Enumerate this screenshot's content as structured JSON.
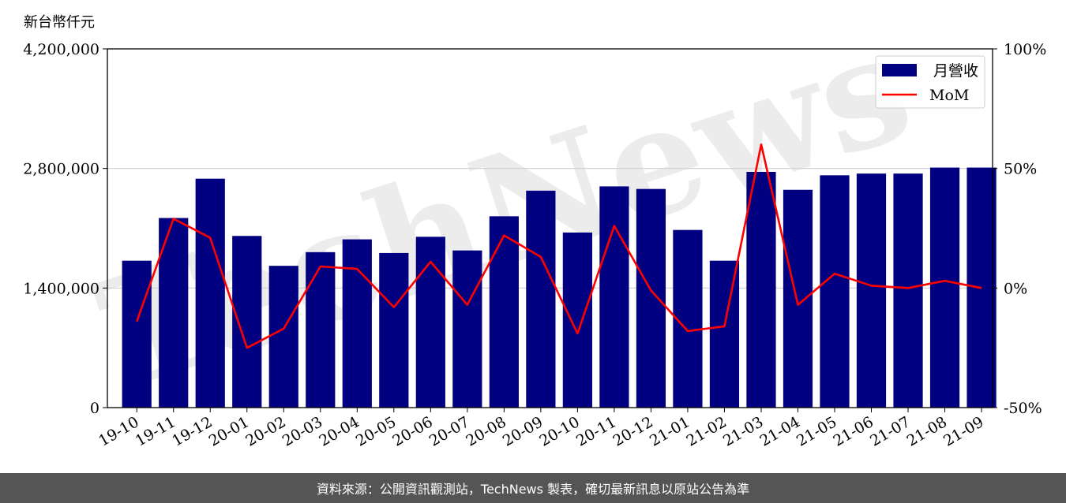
{
  "chart_data": {
    "type": "bar",
    "unit_label": "新台幣仟元",
    "categories": [
      "19-10",
      "19-11",
      "19-12",
      "20-01",
      "20-02",
      "20-03",
      "20-04",
      "20-05",
      "20-06",
      "20-07",
      "20-08",
      "20-09",
      "20-10",
      "20-11",
      "20-12",
      "21-01",
      "21-02",
      "21-03",
      "21-04",
      "21-05",
      "21-06",
      "21-07",
      "21-08",
      "21-09"
    ],
    "series": [
      {
        "name": "月營收",
        "kind": "bar",
        "axis": "left",
        "color": "#000080",
        "values": [
          1720000,
          2220000,
          2680000,
          2010000,
          1660000,
          1820000,
          1970000,
          1810000,
          2000000,
          1840000,
          2240000,
          2540000,
          2050000,
          2590000,
          2560000,
          2080000,
          1720000,
          2760000,
          2550000,
          2720000,
          2740000,
          2740000,
          2810000,
          2810000
        ]
      },
      {
        "name": "MoM",
        "kind": "line",
        "axis": "right",
        "color": "#ff0000",
        "values": [
          -14,
          29,
          21,
          -25,
          -17,
          9,
          8,
          -8,
          11,
          -7,
          22,
          13,
          -19,
          26,
          -1,
          -18,
          -16,
          60,
          -7,
          6,
          1,
          0,
          3,
          0
        ]
      }
    ],
    "left_axis": {
      "min": 0,
      "max": 4200000,
      "ticks": [
        "0",
        "1,400,000",
        "2,800,000",
        "4,200,000"
      ],
      "tick_values": [
        0,
        1400000,
        2800000,
        4200000
      ]
    },
    "right_axis": {
      "min": -50,
      "max": 100,
      "ticks": [
        "-50%",
        "0%",
        "50%",
        "100%"
      ],
      "tick_values": [
        -50,
        0,
        50,
        100
      ]
    },
    "grid": "horizontal",
    "legend_position": "top-right",
    "watermark": "TechNews"
  },
  "footer": {
    "source_note": "資料來源：公開資訊觀測站，TechNews 製表，確切最新訊息以原站公告為準"
  }
}
